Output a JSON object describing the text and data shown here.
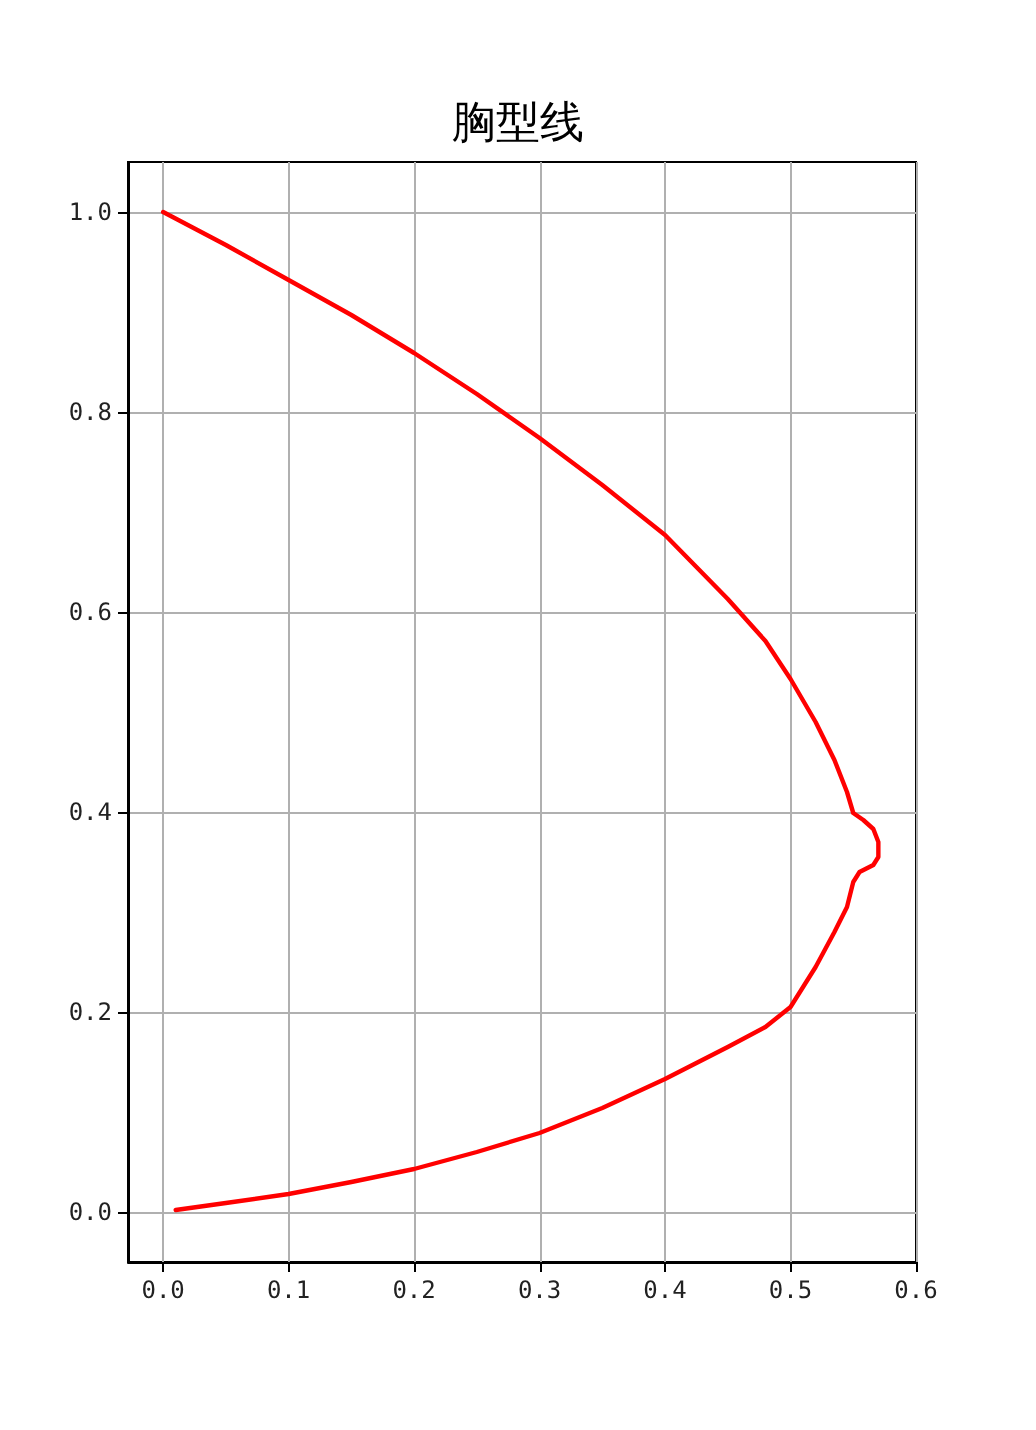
{
  "chart_data": {
    "type": "line",
    "title": "胸型线",
    "xlim": [
      -0.028,
      0.6
    ],
    "ylim": [
      -0.05,
      1.05
    ],
    "xticks": [
      {
        "value": 0,
        "label": "0.0"
      },
      {
        "value": 0.1,
        "label": "0.1"
      },
      {
        "value": 0.2,
        "label": "0.2"
      },
      {
        "value": 0.3,
        "label": "0.3"
      },
      {
        "value": 0.4,
        "label": "0.4"
      },
      {
        "value": 0.5,
        "label": "0.5"
      },
      {
        "value": 0.6,
        "label": "0.6"
      }
    ],
    "yticks": [
      {
        "value": 0,
        "label": "0.0"
      },
      {
        "value": 0.2,
        "label": "0.2"
      },
      {
        "value": 0.4,
        "label": "0.4"
      },
      {
        "value": 0.6,
        "label": "0.6"
      },
      {
        "value": 0.8,
        "label": "0.8"
      },
      {
        "value": 1,
        "label": "1.0"
      }
    ],
    "grid": true,
    "marker": "none",
    "line_style": "solid",
    "series": [
      {
        "color": "#ff0000",
        "x": [
          0,
          0.05,
          0.1,
          0.15,
          0.2,
          0.25,
          0.3,
          0.35,
          0.4,
          0.45,
          0.48,
          0.5,
          0.52,
          0.535,
          0.545,
          0.55,
          0.558,
          0.566,
          0.57,
          0.57,
          0.566,
          0.555,
          0.55,
          0.545,
          0.535,
          0.52,
          0.5,
          0.48,
          0.45,
          0.4,
          0.35,
          0.3,
          0.25,
          0.2,
          0.15,
          0.1,
          0.05,
          0.01
        ],
        "values": [
          1.0,
          0.967,
          0.932,
          0.897,
          0.859,
          0.818,
          0.774,
          0.727,
          0.677,
          0.613,
          0.571,
          0.533,
          0.49,
          0.452,
          0.42,
          0.399,
          0.392,
          0.383,
          0.37,
          0.355,
          0.347,
          0.34,
          0.33,
          0.305,
          0.28,
          0.245,
          0.205,
          0.185,
          0.165,
          0.133,
          0.104,
          0.079,
          0.06,
          0.043,
          0.03,
          0.018,
          0.009,
          0.002
        ]
      }
    ]
  }
}
